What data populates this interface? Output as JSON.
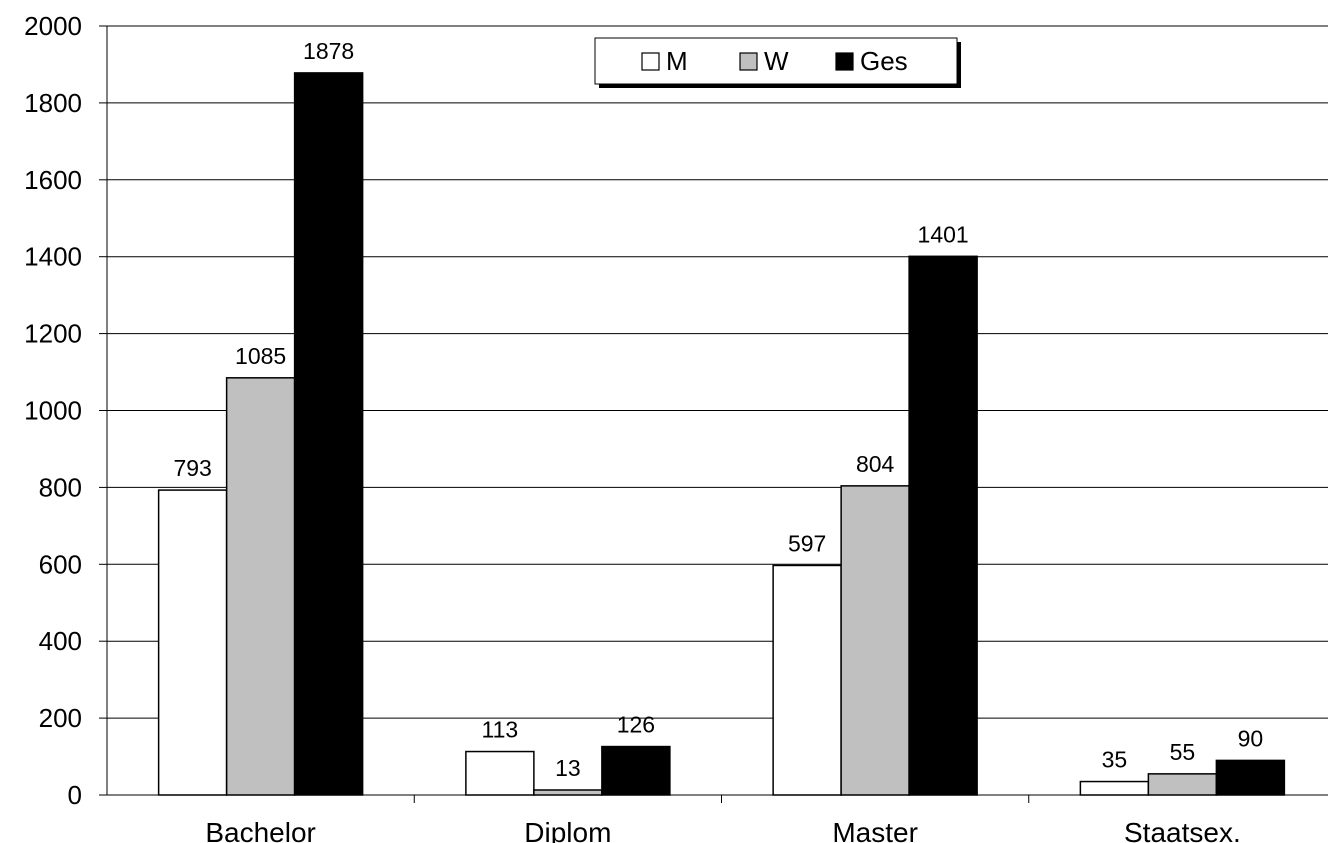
{
  "chart_data": {
    "type": "bar",
    "title": "",
    "xlabel": "",
    "ylabel": "",
    "categories": [
      "Bachelor",
      "Diplom",
      "Master",
      "Staatsex."
    ],
    "series": [
      {
        "name": "M",
        "color": "#ffffff",
        "values": [
          793,
          113,
          597,
          35
        ]
      },
      {
        "name": "W",
        "color": "#c0c0c0",
        "values": [
          1085,
          13,
          804,
          55
        ]
      },
      {
        "name": "Ges",
        "color": "#000000",
        "values": [
          1878,
          126,
          1401,
          90
        ]
      }
    ],
    "ylim": [
      0,
      2000
    ],
    "yticks": [
      "0",
      "200",
      "400",
      "600",
      "800",
      "1000",
      "1200",
      "1400",
      "1600",
      "1800",
      "2000"
    ],
    "grid": true,
    "legend_position": "top-center"
  }
}
